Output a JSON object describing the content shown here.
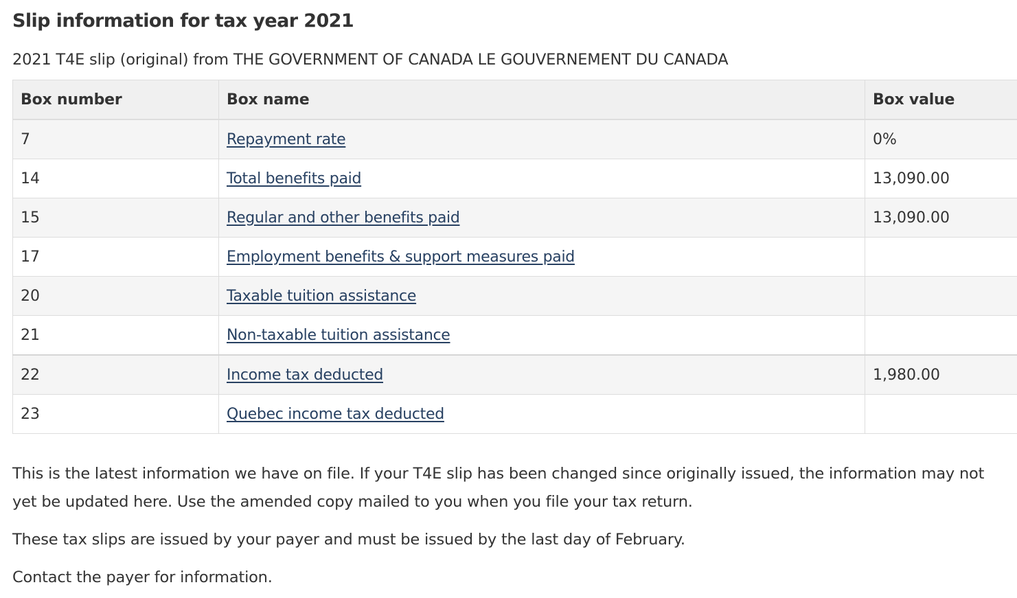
{
  "title": "Slip information for tax year 2021",
  "subtitle": "2021 T4E slip (original) from THE GOVERNMENT OF CANADA LE GOUVERNEMENT DU CANADA",
  "table": {
    "headers": [
      "Box number",
      "Box name",
      "Box value"
    ],
    "rows": [
      {
        "number": "7",
        "name": "Repayment rate",
        "value": "0%"
      },
      {
        "number": "14",
        "name": "Total benefits paid",
        "value": "13,090.00"
      },
      {
        "number": "15",
        "name": "Regular and other benefits paid",
        "value": "13,090.00"
      },
      {
        "number": "17",
        "name": "Employment benefits & support measures paid",
        "value": ""
      },
      {
        "number": "20",
        "name": "Taxable tuition assistance",
        "value": ""
      },
      {
        "number": "21",
        "name": "Non-taxable tuition assistance",
        "value": ""
      },
      {
        "number": "22",
        "name": "Income tax deducted",
        "value": "1,980.00"
      },
      {
        "number": "23",
        "name": "Quebec income tax deducted",
        "value": ""
      }
    ]
  },
  "notes": [
    "This is the latest information we have on file. If your T4E slip has been changed since originally issued, the information may not yet be updated here. Use the amended copy mailed to you when you file your tax return.",
    "These tax slips are issued by your payer and must be issued by the last day of February.",
    "Contact the payer for information."
  ],
  "colors": {
    "link": "#284162",
    "text": "#333333",
    "header_bg": "#f0f0f0",
    "stripe_bg": "#f5f5f5",
    "border": "#dddddd"
  }
}
